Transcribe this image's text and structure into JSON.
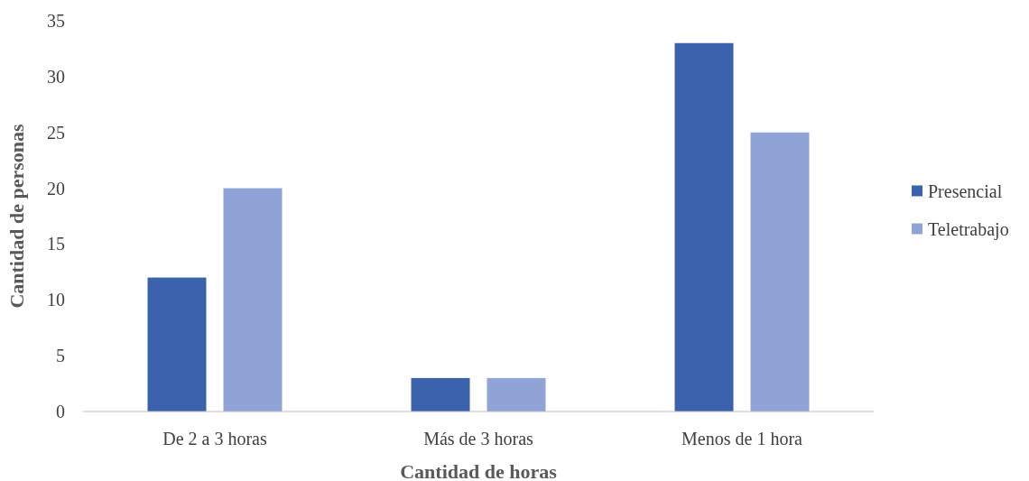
{
  "chart_data": {
    "type": "bar",
    "xlabel": "Cantidad de horas",
    "ylabel": "Cantidad de personas",
    "categories": [
      "De 2 a 3 horas",
      "Más de 3 horas",
      "Menos de 1 hora"
    ],
    "series": [
      {
        "name": "Presencial",
        "color": "#3a62ad",
        "values": [
          12,
          3,
          33
        ]
      },
      {
        "name": "Teletrabajo",
        "color": "#8fa3d6",
        "values": [
          20,
          3,
          25
        ]
      }
    ],
    "ylim": [
      0,
      35
    ],
    "yticks": [
      0,
      5,
      10,
      15,
      20,
      25,
      30,
      35
    ],
    "grid": false,
    "legend": "right"
  }
}
